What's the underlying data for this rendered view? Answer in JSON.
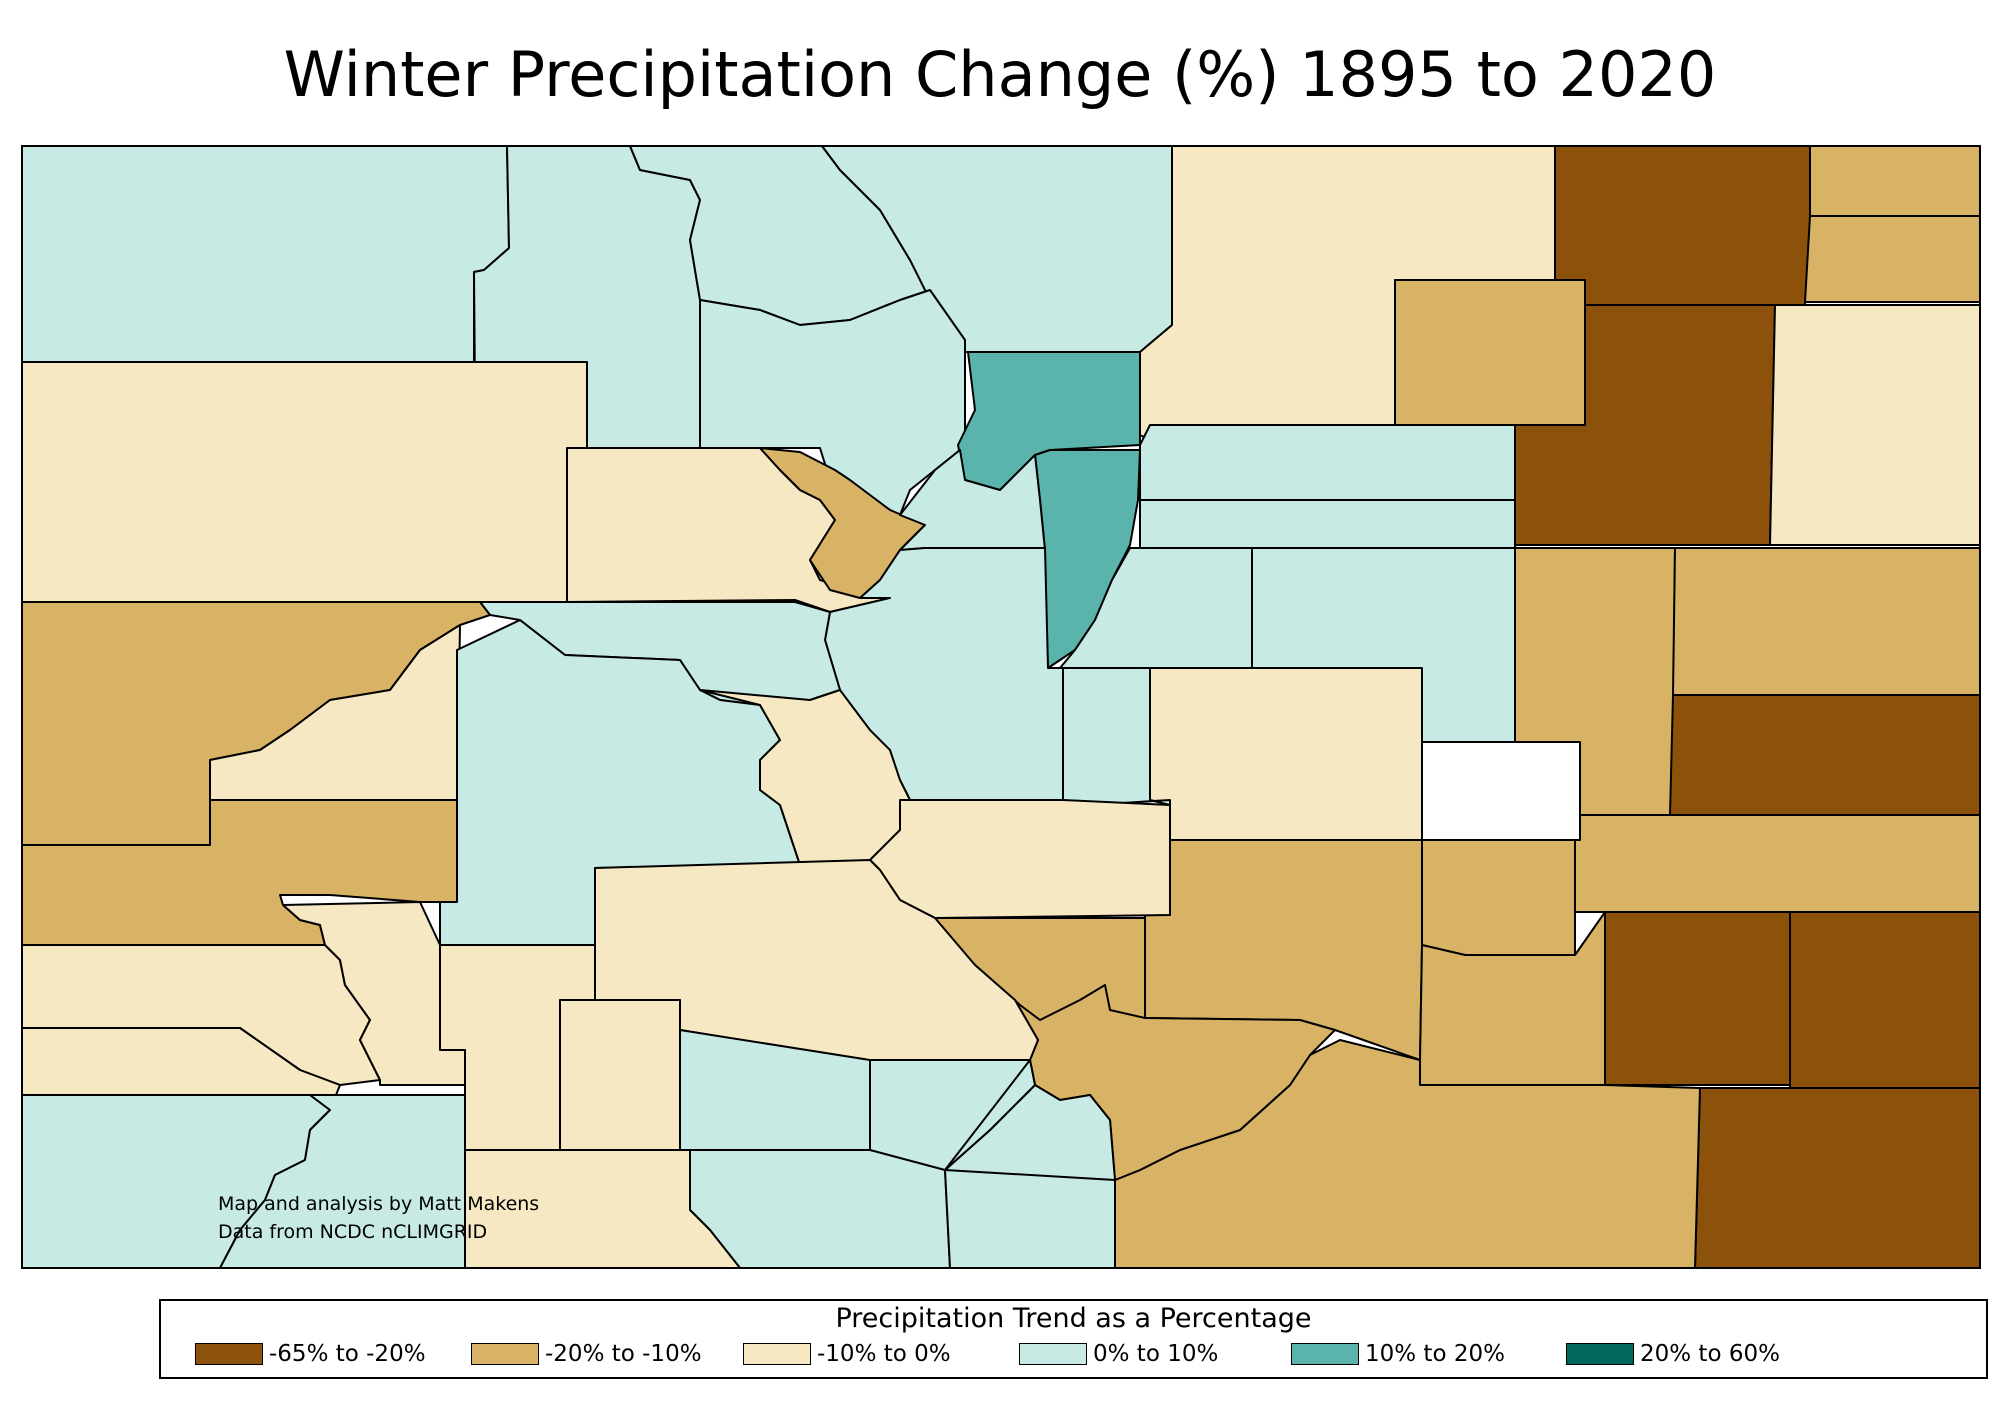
{
  "title": "Winter Precipitation Change (%) 1895 to 2020",
  "credit": {
    "line1": "Map and analysis by Matt Makens",
    "line2": "Data from NCDC nCLIMGRID"
  },
  "legend": {
    "title": "Precipitation Trend as a Percentage",
    "items": [
      {
        "label": "-65% to -20%",
        "color": "#8c510a"
      },
      {
        "label": "-20% to -10%",
        "color": "#d8b365"
      },
      {
        "label": "-10% to 0%",
        "color": "#f6e8c3"
      },
      {
        "label": "0% to 10%",
        "color": "#c7eae5"
      },
      {
        "label": "10% to 20%",
        "color": "#5ab4ac"
      },
      {
        "label": "20% to 60%",
        "color": "#01665e"
      }
    ]
  }
}
